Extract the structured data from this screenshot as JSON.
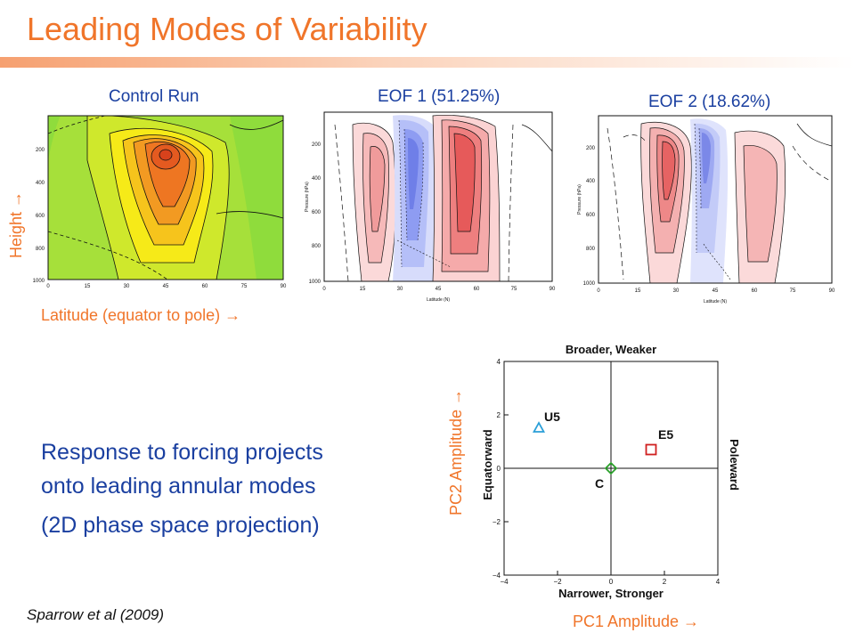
{
  "slide": {
    "title": "Leading Modes of Variability",
    "citation": "Sparrow et al (2009)"
  },
  "panels": {
    "control": {
      "title": "Control Run"
    },
    "eof1": {
      "title": "EOF 1 (51.25%)"
    },
    "eof2": {
      "title": "EOF 2 (18.62%)"
    }
  },
  "panel_axes": {
    "x_ticks": [
      "0",
      "15",
      "30",
      "45",
      "60",
      "75",
      "90"
    ],
    "y_ticks": [
      "200",
      "400",
      "600",
      "800",
      "1000"
    ],
    "small_xlabel": "Latitude (N)",
    "small_ylabel": "Pressure (hPa)"
  },
  "annotations": {
    "height_label": "Height →",
    "latitude_label": "Latitude (equator to pole) →"
  },
  "body_text": {
    "line1": "Response to forcing projects",
    "line2": "onto leading annular modes",
    "line3": "(2D phase space projection)"
  },
  "phase_plot": {
    "top_label": "Broader, Weaker",
    "bottom_label": "Narrower, Stronger",
    "left_label": "Equatorward",
    "right_label": "Poleward",
    "x_axis_label": "PC1 Amplitude →",
    "y_axis_label": "PC2 Amplitude →"
  },
  "chart_data": {
    "type": "scatter",
    "xlim": [
      -4,
      4
    ],
    "ylim": [
      -4,
      4
    ],
    "x_ticks": [
      -4,
      -2,
      0,
      2,
      4
    ],
    "y_ticks": [
      -4,
      -2,
      0,
      2,
      4
    ],
    "points": [
      {
        "label": "U5",
        "x": -2.7,
        "y": 1.5,
        "marker": "triangle",
        "color": "#2a9fd8"
      },
      {
        "label": "E5",
        "x": 1.5,
        "y": 0.7,
        "marker": "square",
        "color": "#d02020"
      },
      {
        "label": "C",
        "x": 0.0,
        "y": 0.0,
        "marker": "diamond",
        "color": "#2aa02a"
      }
    ]
  }
}
